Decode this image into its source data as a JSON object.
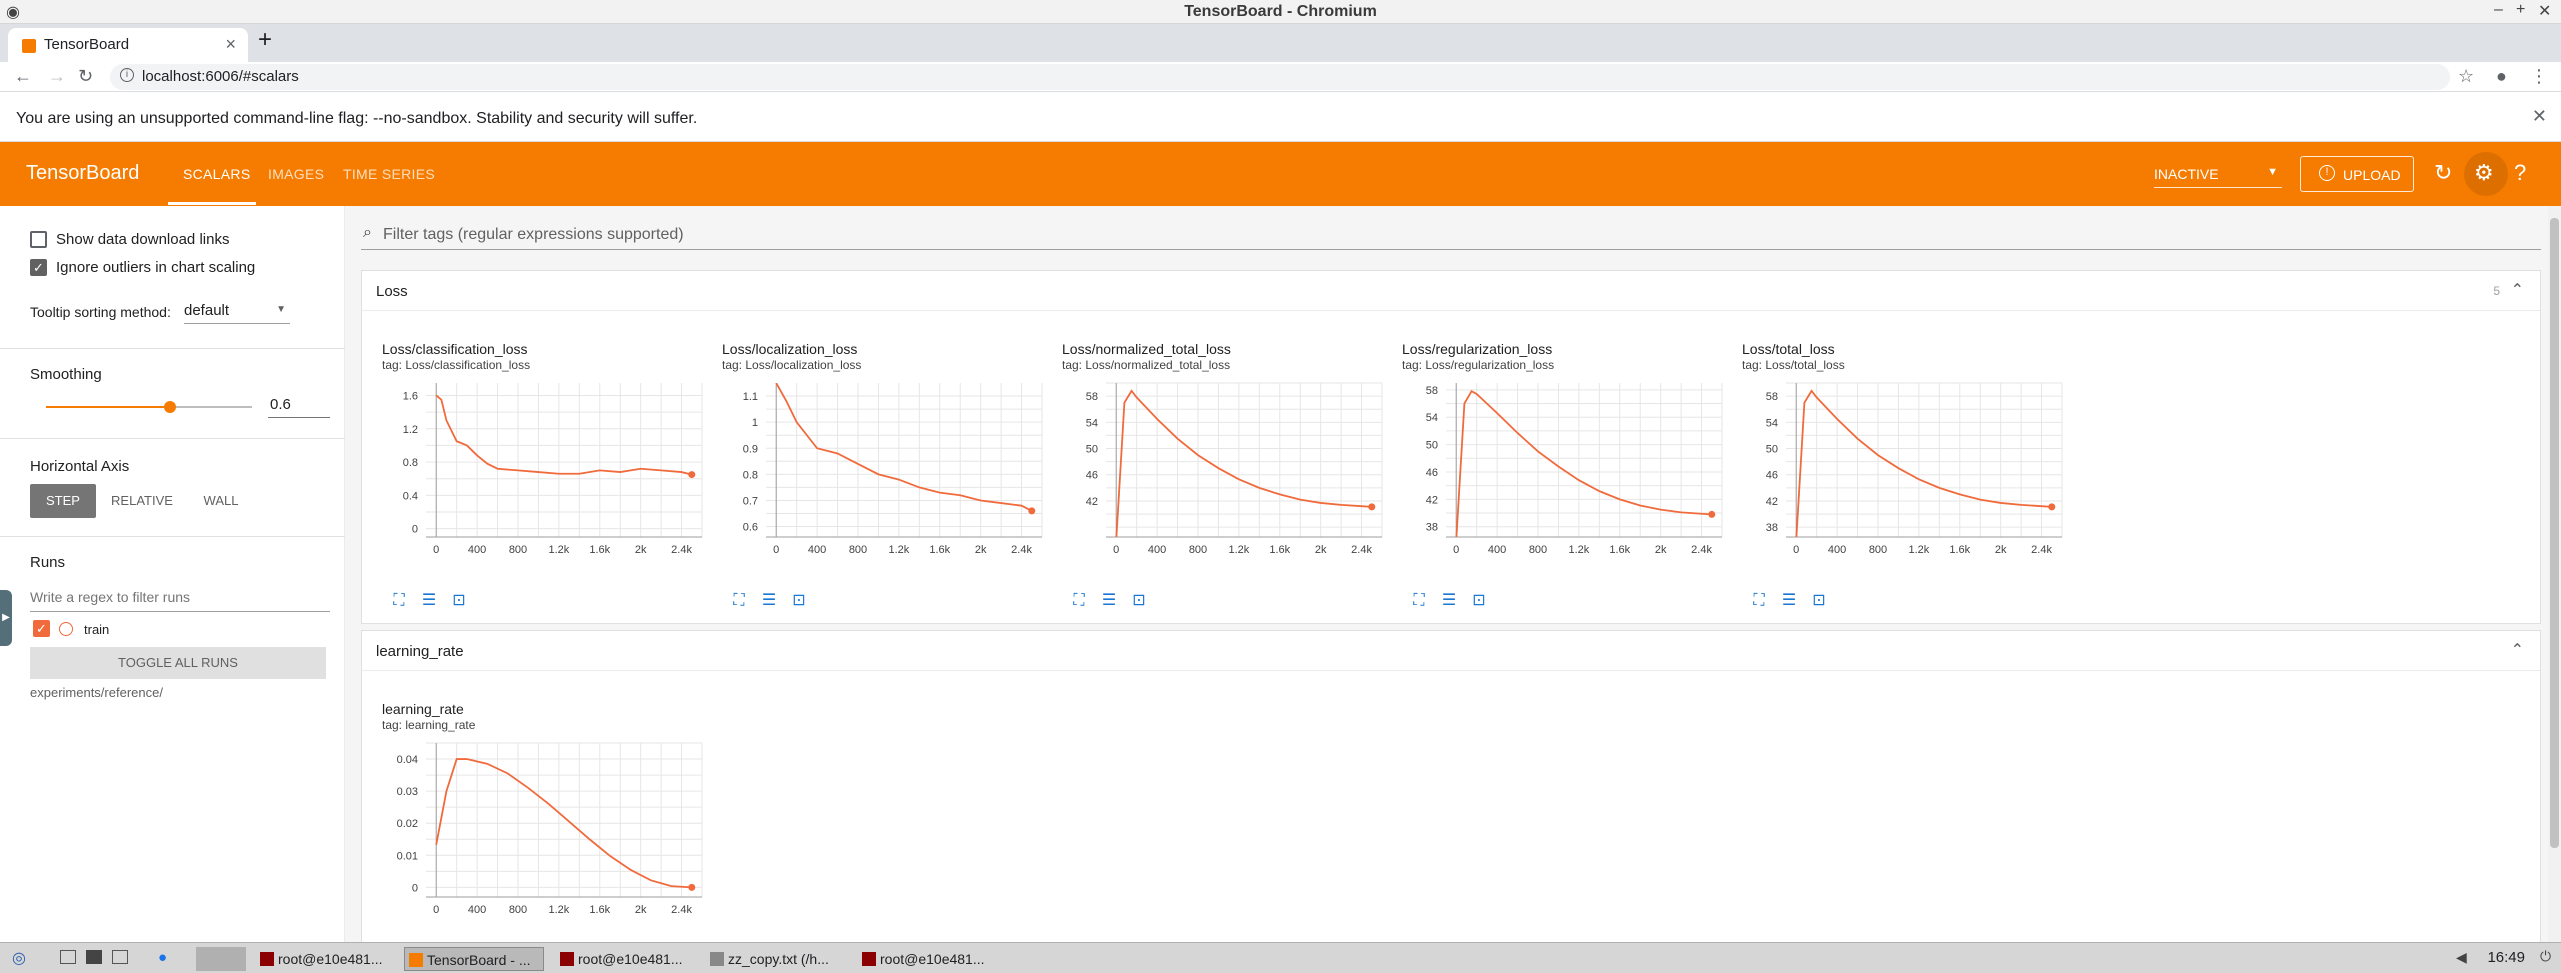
{
  "window": {
    "title": "TensorBoard - Chromium"
  },
  "browser": {
    "tab_label": "TensorBoard",
    "url": "localhost:6006/#scalars",
    "infobar": "You are using an unsupported command-line flag: --no-sandbox. Stability and security will suffer."
  },
  "tb": {
    "brand": "TensorBoard",
    "tabs": [
      "SCALARS",
      "IMAGES",
      "TIME SERIES"
    ],
    "status": "INACTIVE",
    "upload": "UPLOAD"
  },
  "sidebar": {
    "show_download": "Show data download links",
    "ignore_outliers": "Ignore outliers in chart scaling",
    "tooltip_label": "Tooltip sorting method:",
    "tooltip_value": "default",
    "smoothing_label": "Smoothing",
    "smoothing_value": "0.6",
    "smoothing_fraction": 0.6,
    "haxis_label": "Horizontal Axis",
    "haxis_options": [
      "STEP",
      "RELATIVE",
      "WALL"
    ],
    "runs_label": "Runs",
    "runs_placeholder": "Write a regex to filter runs",
    "run_name": "train",
    "toggle_all": "TOGGLE ALL RUNS",
    "run_path": "experiments/reference/"
  },
  "main": {
    "filter_placeholder": "Filter tags (regular expressions supported)",
    "groups": [
      {
        "title": "Loss",
        "count": "5"
      },
      {
        "title": "learning_rate",
        "count": ""
      }
    ]
  },
  "chart_data": [
    {
      "type": "line",
      "title": "Loss/classification_loss",
      "subtitle": "tag: Loss/classification_loss",
      "x_ticks": [
        "0",
        "400",
        "800",
        "1.2k",
        "1.6k",
        "2k",
        "2.4k"
      ],
      "y_ticks": [
        "0",
        "0.4",
        "0.8",
        "1.2",
        "1.6"
      ],
      "xlim": [
        -100,
        2600
      ],
      "ylim": [
        -0.1,
        1.75
      ],
      "x": [
        0,
        50,
        100,
        200,
        300,
        400,
        500,
        600,
        800,
        1000,
        1200,
        1400,
        1600,
        1800,
        2000,
        2200,
        2400,
        2500
      ],
      "y": [
        1.6,
        1.55,
        1.3,
        1.05,
        1.0,
        0.88,
        0.78,
        0.72,
        0.7,
        0.68,
        0.66,
        0.66,
        0.7,
        0.68,
        0.72,
        0.7,
        0.68,
        0.65
      ]
    },
    {
      "type": "line",
      "title": "Loss/localization_loss",
      "subtitle": "tag: Loss/localization_loss",
      "x_ticks": [
        "0",
        "400",
        "800",
        "1.2k",
        "1.6k",
        "2k",
        "2.4k"
      ],
      "y_ticks": [
        "0.6",
        "0.7",
        "0.8",
        "0.9",
        "1",
        "1.1"
      ],
      "xlim": [
        -100,
        2600
      ],
      "ylim": [
        0.56,
        1.15
      ],
      "x": [
        0,
        100,
        200,
        400,
        600,
        800,
        1000,
        1200,
        1400,
        1600,
        1800,
        2000,
        2200,
        2400,
        2500
      ],
      "y": [
        1.15,
        1.08,
        1.0,
        0.9,
        0.88,
        0.84,
        0.8,
        0.78,
        0.75,
        0.73,
        0.72,
        0.7,
        0.69,
        0.68,
        0.66
      ]
    },
    {
      "type": "line",
      "title": "Loss/normalized_total_loss",
      "subtitle": "tag: Loss/normalized_total_loss",
      "x_ticks": [
        "0",
        "400",
        "800",
        "1.2k",
        "1.6k",
        "2k",
        "2.4k"
      ],
      "y_ticks": [
        "42",
        "46",
        "50",
        "54",
        "58"
      ],
      "xlim": [
        -100,
        2600
      ],
      "ylim": [
        36.5,
        60
      ],
      "x": [
        0,
        80,
        150,
        200,
        400,
        600,
        800,
        1000,
        1200,
        1400,
        1600,
        1800,
        2000,
        2200,
        2400,
        2500
      ],
      "y": [
        36,
        57,
        58.8,
        57.8,
        54.5,
        51.5,
        49,
        47,
        45.3,
        44,
        43,
        42.2,
        41.7,
        41.4,
        41.2,
        41.1
      ]
    },
    {
      "type": "line",
      "title": "Loss/regularization_loss",
      "subtitle": "tag: Loss/regularization_loss",
      "x_ticks": [
        "0",
        "400",
        "800",
        "1.2k",
        "1.6k",
        "2k",
        "2.4k"
      ],
      "y_ticks": [
        "38",
        "42",
        "46",
        "50",
        "54",
        "58"
      ],
      "xlim": [
        -100,
        2600
      ],
      "ylim": [
        36.5,
        59
      ],
      "x": [
        0,
        80,
        150,
        200,
        400,
        600,
        800,
        1000,
        1200,
        1400,
        1600,
        1800,
        2000,
        2200,
        2400,
        2500
      ],
      "y": [
        36,
        56,
        57.8,
        57.4,
        54.6,
        51.7,
        49,
        46.8,
        44.8,
        43.2,
        42,
        41.1,
        40.5,
        40.1,
        39.9,
        39.8
      ]
    },
    {
      "type": "line",
      "title": "Loss/total_loss",
      "subtitle": "tag: Loss/total_loss",
      "x_ticks": [
        "0",
        "400",
        "800",
        "1.2k",
        "1.6k",
        "2k",
        "2.4k"
      ],
      "y_ticks": [
        "38",
        "42",
        "46",
        "50",
        "54",
        "58"
      ],
      "xlim": [
        -100,
        2600
      ],
      "ylim": [
        36.5,
        60
      ],
      "x": [
        0,
        80,
        150,
        200,
        400,
        600,
        800,
        1000,
        1200,
        1400,
        1600,
        1800,
        2000,
        2200,
        2400,
        2500
      ],
      "y": [
        36,
        57,
        58.8,
        57.8,
        54.5,
        51.5,
        49,
        47,
        45.3,
        44,
        43,
        42.2,
        41.7,
        41.4,
        41.2,
        41.1
      ]
    },
    {
      "type": "line",
      "title": "learning_rate",
      "subtitle": "tag: learning_rate",
      "x_ticks": [
        "0",
        "400",
        "800",
        "1.2k",
        "1.6k",
        "2k",
        "2.4k"
      ],
      "y_ticks": [
        "0",
        "0.01",
        "0.02",
        "0.03",
        "0.04"
      ],
      "xlim": [
        -100,
        2600
      ],
      "ylim": [
        -0.003,
        0.045
      ],
      "x": [
        0,
        100,
        200,
        300,
        500,
        700,
        900,
        1100,
        1300,
        1500,
        1700,
        1900,
        2100,
        2300,
        2500
      ],
      "y": [
        0.0133,
        0.03,
        0.04,
        0.04,
        0.0385,
        0.0355,
        0.031,
        0.026,
        0.0205,
        0.015,
        0.0098,
        0.0055,
        0.0022,
        0.0004,
        0.0
      ]
    }
  ],
  "taskbar": {
    "tasks": [
      "root@e10e481...",
      "TensorBoard - ...",
      "root@e10e481...",
      "zz_copy.txt (/h...",
      "root@e10e481..."
    ],
    "clock": "16:49"
  },
  "colors": {
    "accent": "#f57c00",
    "line": "#f06a3c"
  }
}
